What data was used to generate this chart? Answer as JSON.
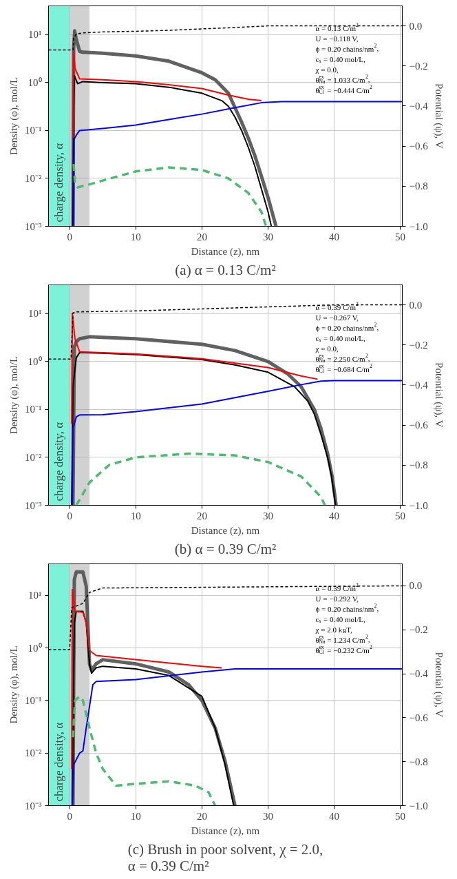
{
  "chart_data": [
    {
      "type": "line",
      "title": "(a) α = 0.13 C/m²",
      "xlabel": "Distance (z), nm",
      "ylabel": "Density (φ), mol/L",
      "y2label": "Potential (ψ), V",
      "xlim": [
        -3.2,
        50.3
      ],
      "ylim": [
        0.001,
        40
      ],
      "y2lim": [
        -1.0,
        0.1
      ],
      "xticks": [
        0,
        10,
        20,
        30,
        40,
        50
      ],
      "yticks": [
        {
          "value": 0.001,
          "label": "10⁻³"
        },
        {
          "value": 0.01,
          "label": "10⁻²"
        },
        {
          "value": 0.1,
          "label": "10⁻¹"
        },
        {
          "value": 1,
          "label": "10⁰"
        },
        {
          "value": 10,
          "label": "10¹"
        }
      ],
      "y2ticks": [
        {
          "value": 0,
          "label": "0.0"
        },
        {
          "value": -0.2,
          "label": "−0.2"
        },
        {
          "value": -0.4,
          "label": "−0.4"
        },
        {
          "value": -0.6,
          "label": "−0.6"
        },
        {
          "value": -0.8,
          "label": "−0.8"
        },
        {
          "value": -1.0,
          "label": "−1.0"
        }
      ],
      "log": "y",
      "grid": true,
      "bands": [
        {
          "axis": "x",
          "from": -3.2,
          "to": 0,
          "label": "charge density, α",
          "color": "#7ef2d8"
        },
        {
          "axis": "x",
          "from": 0,
          "to": 3,
          "color": "#9a9a9a"
        }
      ],
      "annotations": [
        "α = 0.13 C/m$^{2}$",
        "U = −0.118 V,",
        "ϕ = 0.20 chains/nm$^{2}$,",
        "c$_{s}$ = 0.40 mol/L,",
        "χ = 0.0,",
        "θ$^{ex}$$_{Na}$ = 1.033 C/m$^{2}$,",
        "θ$^{ex}$$_{Cl}$ = −0.444 C/m$^{2}$"
      ],
      "series": [
        {
          "color": "#505050",
          "x": [
            0.5,
            0.6,
            0.75,
            1.0,
            1.5,
            2,
            5,
            10,
            15,
            20,
            22,
            24,
            25,
            26,
            27,
            28,
            29,
            30,
            31.2
          ],
          "values": [
            0.001,
            5,
            12,
            8,
            4.5,
            4.3,
            4.1,
            3.6,
            2.8,
            1.6,
            1.15,
            0.6,
            0.3,
            0.15,
            0.07,
            0.03,
            0.011,
            0.004,
            0.001
          ]
        },
        {
          "color": "#000000",
          "x": [
            0.5,
            0.6,
            0.7,
            1.2,
            2,
            5,
            10,
            15,
            20,
            23,
            24,
            25,
            26,
            27,
            28,
            29,
            30,
            30.5
          ],
          "values": [
            0.001,
            0.3,
            1.4,
            0.95,
            1.05,
            1.0,
            0.95,
            0.8,
            0.6,
            0.42,
            0.32,
            0.19,
            0.1,
            0.045,
            0.018,
            0.006,
            0.002,
            0.001
          ]
        },
        {
          "color": "#ff0000",
          "x": [
            0.5,
            0.6,
            0.8,
            1.5,
            5,
            10,
            15,
            20,
            24,
            27,
            29
          ],
          "values": [
            0.07,
            4.5,
            2,
            1.2,
            1.15,
            1.05,
            0.9,
            0.75,
            0.55,
            0.45,
            0.42
          ]
        },
        {
          "color": "#0000ff",
          "x": [
            0.6,
            0.65,
            1.0,
            1.5,
            5,
            10,
            15,
            20,
            25,
            29,
            32,
            50.3
          ],
          "values": [
            0.001,
            0.065,
            0.08,
            0.1,
            0.11,
            0.13,
            0.17,
            0.22,
            0.3,
            0.38,
            0.4,
            0.4
          ]
        },
        {
          "color": "#4dbb6f",
          "line_style": "dashed",
          "x": [
            0.6,
            0.8,
            1.2,
            3,
            5,
            10,
            15,
            20,
            24,
            27,
            29,
            29.7
          ],
          "values": [
            0.02,
            0.008,
            0.0065,
            0.0075,
            0.009,
            0.014,
            0.017,
            0.015,
            0.01,
            0.005,
            0.002,
            0.001
          ]
        },
        {
          "color": "#000000",
          "axis": "y2",
          "line_style": "dashed",
          "x": [
            -3.2,
            0.5,
            0.6,
            1.0,
            2,
            5,
            10,
            15,
            20,
            25,
            30,
            50.3
          ],
          "values": [
            -0.12,
            -0.12,
            -0.06,
            -0.04,
            -0.035,
            -0.03,
            -0.027,
            -0.022,
            -0.015,
            -0.008,
            0,
            0
          ]
        }
      ]
    },
    {
      "type": "line",
      "title": "(b) α = 0.39 C/m²",
      "xlabel": "Distance (z), nm",
      "ylabel": "Density (φ), mol/L",
      "y2label": "Potential (ψ), V",
      "xlim": [
        -3.2,
        50.3
      ],
      "ylim": [
        0.001,
        40
      ],
      "y2lim": [
        -1.0,
        0.1
      ],
      "xticks": [
        0,
        10,
        20,
        30,
        40,
        50
      ],
      "yticks": [
        {
          "value": 0.001,
          "label": "10⁻³"
        },
        {
          "value": 0.01,
          "label": "10⁻²"
        },
        {
          "value": 0.1,
          "label": "10⁻¹"
        },
        {
          "value": 1,
          "label": "10⁰"
        },
        {
          "value": 10,
          "label": "10¹"
        }
      ],
      "y2ticks": [
        {
          "value": 0,
          "label": "0.0"
        },
        {
          "value": -0.2,
          "label": "−0.2"
        },
        {
          "value": -0.4,
          "label": "−0.4"
        },
        {
          "value": -0.6,
          "label": "−0.6"
        },
        {
          "value": -0.8,
          "label": "−0.8"
        },
        {
          "value": -1.0,
          "label": "−1.0"
        }
      ],
      "log": "y",
      "grid": true,
      "bands": [
        {
          "axis": "x",
          "from": -3.2,
          "to": 0,
          "label": "charge density, α",
          "color": "#7ef2d8"
        },
        {
          "axis": "x",
          "from": 0,
          "to": 3,
          "color": "#9a9a9a"
        }
      ],
      "annotations": [
        "α = 0.39 C/m$^{2}$",
        "U = −0.267 V,",
        "ϕ = 0.20 chains/nm$^{2}$,",
        "c$_{s}$ = 0.40 mol/L,",
        "χ = 0.0,",
        "θ$^{ex}$$_{Na}$ = 2.250 C/m$^{2}$,",
        "θ$^{ex}$$_{Cl}$ = −0.684 C/m$^{2}$"
      ],
      "series": [
        {
          "color": "#505050",
          "x": [
            0.5,
            0.7,
            1.0,
            1.5,
            3,
            5,
            10,
            20,
            25,
            30,
            33,
            35,
            37,
            38,
            39,
            39.7,
            40.3
          ],
          "values": [
            0.001,
            2.0,
            2.6,
            3.0,
            3.3,
            3.2,
            3.0,
            2.3,
            1.7,
            1.0,
            0.55,
            0.3,
            0.1,
            0.04,
            0.012,
            0.004,
            0.001
          ]
        },
        {
          "color": "#000000",
          "x": [
            0.3,
            0.5,
            1.0,
            1.5,
            5,
            10,
            20,
            25,
            30,
            34,
            36,
            37,
            38,
            39,
            39.6,
            40.2
          ],
          "values": [
            0.001,
            0.3,
            1.2,
            1.55,
            1.5,
            1.4,
            1.1,
            0.85,
            0.6,
            0.3,
            0.15,
            0.08,
            0.03,
            0.01,
            0.004,
            0.001
          ]
        },
        {
          "color": "#ff0000",
          "x": [
            0.3,
            0.4,
            0.8,
            1.5,
            10,
            20,
            30,
            35,
            37.5
          ],
          "values": [
            0.05,
            10,
            3,
            1.6,
            1.45,
            1.15,
            0.75,
            0.5,
            0.43
          ]
        },
        {
          "color": "#0000ff",
          "x": [
            0.4,
            0.5,
            1.0,
            1.5,
            5,
            10,
            20,
            30,
            35,
            38,
            40,
            50.3
          ],
          "values": [
            0.001,
            0.04,
            0.07,
            0.077,
            0.078,
            0.09,
            0.13,
            0.24,
            0.33,
            0.39,
            0.4,
            0.4
          ]
        },
        {
          "color": "#4dbb6f",
          "line_style": "dashed",
          "x": [
            1,
            3,
            6,
            10,
            18,
            25,
            30,
            35,
            38,
            38.6
          ],
          "values": [
            0.001,
            0.003,
            0.007,
            0.01,
            0.012,
            0.011,
            0.008,
            0.004,
            0.0015,
            0.001
          ]
        },
        {
          "color": "#000000",
          "axis": "y2",
          "line_style": "dashed",
          "x": [
            -3.2,
            0.2,
            0.5,
            1.0,
            10,
            20,
            30,
            40,
            50.3
          ],
          "values": [
            -0.27,
            -0.27,
            -0.04,
            -0.035,
            -0.03,
            -0.02,
            -0.01,
            0,
            0
          ]
        }
      ]
    },
    {
      "type": "line",
      "title": "(c) Brush in poor solvent, χ = 2.0, α = 0.39 C/m²",
      "xlabel": "Distance (z), nm",
      "ylabel": "Density (φ), mol/L",
      "y2label": "Potential (ψ), V",
      "xlim": [
        -3.2,
        50.3
      ],
      "ylim": [
        0.001,
        40
      ],
      "y2lim": [
        -1.0,
        0.1
      ],
      "xticks": [
        0,
        10,
        20,
        30,
        40,
        50
      ],
      "yticks": [
        {
          "value": 0.001,
          "label": "10⁻³"
        },
        {
          "value": 0.01,
          "label": "10⁻²"
        },
        {
          "value": 0.1,
          "label": "10⁻¹"
        },
        {
          "value": 1,
          "label": "10⁰"
        },
        {
          "value": 10,
          "label": "10¹"
        }
      ],
      "y2ticks": [
        {
          "value": 0,
          "label": "0.0"
        },
        {
          "value": -0.2,
          "label": "−0.2"
        },
        {
          "value": -0.4,
          "label": "−0.4"
        },
        {
          "value": -0.6,
          "label": "−0.6"
        },
        {
          "value": -0.8,
          "label": "−0.8"
        },
        {
          "value": -1.0,
          "label": "−1.0"
        }
      ],
      "log": "y",
      "grid": true,
      "bands": [
        {
          "axis": "x",
          "from": -3.2,
          "to": 0,
          "label": "charge density, α",
          "color": "#7ef2d8"
        },
        {
          "axis": "x",
          "from": 0,
          "to": 3,
          "color": "#9a9a9a"
        }
      ],
      "annotations": [
        "α = 0.39 C/m$^{2}$",
        "U = −0.292 V,",
        "ϕ = 0.20 chains/nm$^{2}$,",
        "c$_{s}$ = 0.40 mol/L,",
        "χ = 2.0 k$_{B}$T,",
        "θ$^{ex}$$_{Na}$ = 1.234 C/m$^{2}$,",
        "θ$^{ex}$$_{Cl}$ = −0.232 C/m$^{2}$"
      ],
      "series": [
        {
          "color": "#505050",
          "x": [
            0.5,
            0.7,
            1.0,
            2.0,
            2.5,
            3.0,
            3.3,
            4,
            5,
            10,
            15,
            18,
            20,
            22,
            23.5,
            25
          ],
          "values": [
            0.001,
            20,
            28,
            28,
            15,
            0.5,
            0.38,
            0.5,
            0.6,
            0.5,
            0.35,
            0.2,
            0.1,
            0.03,
            0.007,
            0.001
          ]
        },
        {
          "color": "#000000",
          "x": [
            0.4,
            0.7,
            1.0,
            2.0,
            2.5,
            3.0,
            3.3,
            4,
            5,
            10,
            15,
            20,
            22,
            23.5,
            24.8
          ],
          "values": [
            0.001,
            3,
            5,
            5,
            3,
            0.5,
            0.33,
            0.42,
            0.45,
            0.4,
            0.3,
            0.12,
            0.03,
            0.006,
            0.001
          ]
        },
        {
          "color": "#ff0000",
          "x": [
            0.3,
            0.4,
            0.8,
            2.0,
            2.5,
            3.0,
            4,
            10,
            20,
            23
          ],
          "values": [
            0.005,
            13,
            5,
            4.8,
            3,
            0.9,
            0.72,
            0.6,
            0.45,
            0.42
          ]
        },
        {
          "color": "#0000ff",
          "x": [
            0.4,
            0.6,
            1.5,
            2.0,
            2.5,
            3.5,
            4,
            10,
            20,
            25,
            50.3
          ],
          "values": [
            0.001,
            0.006,
            0.01,
            0.011,
            0.03,
            0.2,
            0.23,
            0.25,
            0.35,
            0.4,
            0.4
          ]
        },
        {
          "color": "#4dbb6f",
          "line_style": "dashed",
          "x": [
            0.5,
            0.8,
            1.5,
            2,
            3,
            4,
            5,
            7,
            10,
            15,
            19,
            21,
            22
          ],
          "values": [
            0.02,
            0.1,
            0.12,
            0.1,
            0.03,
            0.01,
            0.005,
            0.0024,
            0.0026,
            0.0029,
            0.0024,
            0.0018,
            0.001
          ]
        },
        {
          "color": "#000000",
          "axis": "y2",
          "line_style": "dashed",
          "x": [
            -3.2,
            0,
            0.3,
            2,
            3,
            5,
            50.3
          ],
          "values": [
            -0.29,
            -0.29,
            -0.1,
            -0.08,
            -0.03,
            -0.01,
            0
          ]
        }
      ]
    }
  ]
}
